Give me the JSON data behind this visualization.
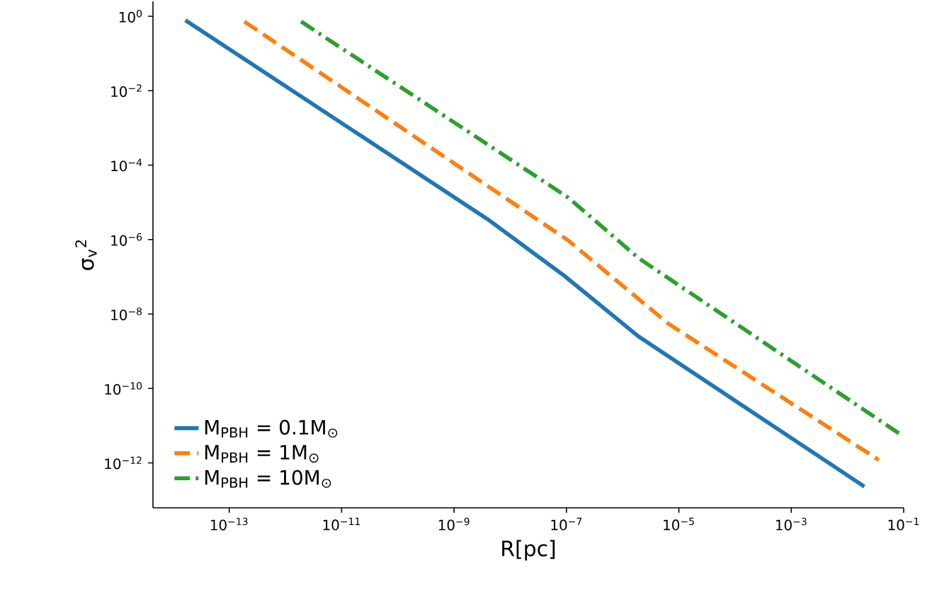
{
  "chart_data": {
    "type": "line",
    "xlabel": "R[pc]",
    "ylabel": "σ$_{v}$$^{2}$",
    "log": "xy",
    "legend": "bottom left",
    "grid": false,
    "xlim": [
      4.4e-15,
      0.1
    ],
    "ylim": [
      6.2e-14,
      2.5
    ],
    "xticks": [
      {
        "value": 1e-13,
        "label": "10$^{−13}$"
      },
      {
        "value": 1e-11,
        "label": "10$^{−11}$"
      },
      {
        "value": 1e-09,
        "label": "10$^{−9}$"
      },
      {
        "value": 1e-07,
        "label": "10$^{−7}$"
      },
      {
        "value": 1e-05,
        "label": "10$^{−5}$"
      },
      {
        "value": 0.001,
        "label": "10$^{−3}$"
      },
      {
        "value": 0.1,
        "label": "10$^{−1}$"
      }
    ],
    "yticks": [
      {
        "value": 1,
        "label": "10$^{0}$"
      },
      {
        "value": 0.01,
        "label": "10$^{−2}$"
      },
      {
        "value": 0.0001,
        "label": "10$^{−4}$"
      },
      {
        "value": 1e-06,
        "label": "10$^{−6}$"
      },
      {
        "value": 1e-08,
        "label": "10$^{−8}$"
      },
      {
        "value": 1e-10,
        "label": "10$^{−10}$"
      },
      {
        "value": 1e-12,
        "label": "10$^{−12}$"
      }
    ],
    "series": [
      {
        "name": "M$_{PBH}$ = 0.1M$_{⊙}$",
        "color": "#1f77b4",
        "line_style": "solid",
        "x": [
          1.66e-14,
          3.98e-09,
          9.1e-08,
          1.91e-06,
          0.02
        ],
        "values": [
          0.78,
          3.5e-06,
          1.07e-07,
          2.5e-09,
          2.3e-13
        ]
      },
      {
        "name": "M$_{PBH}$ = 1M$_{⊙}$",
        "color": "#ff7f0e",
        "line_style": "dashed",
        "x": [
          1.86e-13,
          1.07e-07,
          6.5e-06,
          0.036
        ],
        "values": [
          0.72,
          9.5e-07,
          5.5e-09,
          1.2e-12
        ]
      },
      {
        "name": "M$_{PBH}$ = 10M$_{⊙}$",
        "color": "#2ca02c",
        "line_style": "dashdot",
        "x": [
          1.9e-12,
          1.07e-07,
          1.9e-06,
          0.091
        ],
        "values": [
          0.72,
          1.35e-05,
          3.2e-07,
          5.6e-12
        ]
      }
    ]
  }
}
